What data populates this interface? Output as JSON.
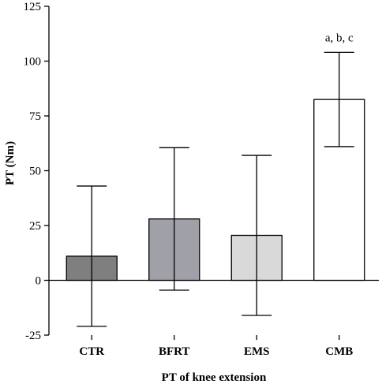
{
  "chart_data": {
    "type": "bar",
    "title": "",
    "xlabel": "PT of knee extension",
    "ylabel": "PT (Nm)",
    "categories": [
      "CTR",
      "BFRT",
      "EMS",
      "CMB"
    ],
    "series": [
      {
        "values": [
          11,
          28,
          20.5,
          82.5
        ],
        "error_low": [
          -21,
          -4.5,
          -16,
          61
        ],
        "error_high": [
          43,
          60.5,
          57,
          104
        ],
        "colors": [
          "#7f7f7f",
          "#a0a0a8",
          "#d9d9d9",
          "#ffffff"
        ]
      }
    ],
    "ylim": [
      -25,
      125
    ],
    "yticks": [
      -25,
      0,
      25,
      50,
      75,
      100,
      125
    ],
    "annotations": [
      {
        "category": "CMB",
        "text": "a, b, c"
      }
    ],
    "grid": false,
    "legend": "none"
  }
}
